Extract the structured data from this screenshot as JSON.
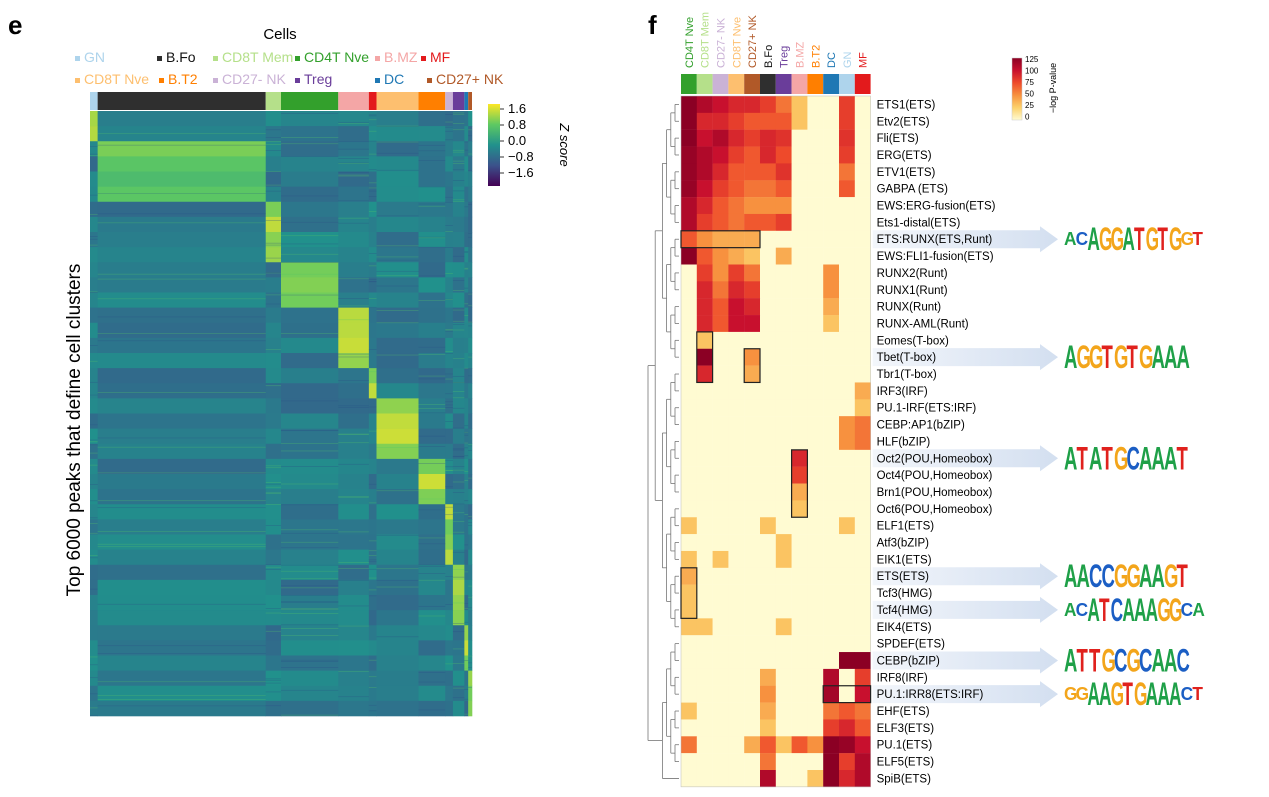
{
  "figure": {
    "panel_e": {
      "label": "e",
      "legend_title": "Cells",
      "legend_items": [
        {
          "name": "GN",
          "color": "#aed4ec"
        },
        {
          "name": "B.Fo",
          "color": "#2f2f2f"
        },
        {
          "name": "CD8T Mem",
          "color": "#b5e08a"
        },
        {
          "name": "CD4T Nve",
          "color": "#33a02c"
        },
        {
          "name": "B.MZ",
          "color": "#f4a6a6"
        },
        {
          "name": "MF",
          "color": "#e31a1c"
        },
        {
          "name": "CD8T Nve",
          "color": "#fdbf6f"
        },
        {
          "name": "B.T2",
          "color": "#ff7f00"
        },
        {
          "name": "CD27- NK",
          "color": "#cab2d6"
        },
        {
          "name": "Treg",
          "color": "#6a3d9a"
        },
        {
          "name": "DC",
          "color": "#1f78b4"
        },
        {
          "name": "CD27+ NK",
          "color": "#b15928"
        }
      ],
      "y_label": "Top 6000 peaks that define cell clusters",
      "colorbar_title": "Z score",
      "colorbar_ticks": [
        "1.6",
        "0.8",
        "0.0",
        "−0.8",
        "−1.6"
      ],
      "colorbar_colors": [
        "#fde725",
        "#5ec962",
        "#21918c",
        "#3b528b",
        "#440154"
      ]
    },
    "panel_f": {
      "label": "f",
      "colorbar_title": "−log P-value",
      "colorbar_ticks": [
        "125",
        "100",
        "75",
        "50",
        "25",
        "0"
      ],
      "colorbar_colors": [
        "#8b0024",
        "#c8102e",
        "#ee4a2b",
        "#f7913f",
        "#fcd16b",
        "#fffbd2"
      ]
    }
  },
  "chart_data": [
    {
      "type": "heatmap",
      "title": "",
      "xlabel": "Cells",
      "ylabel": "Top 6000 peaks that define cell clusters",
      "colorbar_label": "Z score",
      "colorbar_range": [
        -1.6,
        1.6
      ],
      "rows": 6000,
      "column_groups": [
        {
          "name": "GN",
          "fraction": 0.02
        },
        {
          "name": "B.Fo",
          "fraction": 0.44
        },
        {
          "name": "CD8T Mem",
          "fraction": 0.04
        },
        {
          "name": "CD4T Nve",
          "fraction": 0.15
        },
        {
          "name": "B.MZ",
          "fraction": 0.08
        },
        {
          "name": "MF",
          "fraction": 0.02
        },
        {
          "name": "CD8T Nve",
          "fraction": 0.11
        },
        {
          "name": "B.T2",
          "fraction": 0.07
        },
        {
          "name": "CD27- NK",
          "fraction": 0.02
        },
        {
          "name": "Treg",
          "fraction": 0.03
        },
        {
          "name": "DC",
          "fraction": 0.01
        },
        {
          "name": "CD27+ NK",
          "fraction": 0.01
        }
      ]
    },
    {
      "type": "heatmap",
      "title": "",
      "xlabel": "",
      "ylabel": "",
      "colorbar_label": "−log P-value",
      "colorbar_range": [
        0,
        125
      ],
      "columns": [
        {
          "name": "CD4T Nve",
          "color": "#33a02c"
        },
        {
          "name": "CD8T Mem",
          "color": "#b5e08a"
        },
        {
          "name": "CD27- NK",
          "color": "#cab2d6"
        },
        {
          "name": "CD8T Nve",
          "color": "#fdbf6f"
        },
        {
          "name": "CD27+ NK",
          "color": "#b15928"
        },
        {
          "name": "B.Fo",
          "color": "#2f2f2f"
        },
        {
          "name": "Treg",
          "color": "#6a3d9a"
        },
        {
          "name": "B.MZ",
          "color": "#f4a6a6"
        },
        {
          "name": "B.T2",
          "color": "#ff7f00"
        },
        {
          "name": "DC",
          "color": "#1f78b4"
        },
        {
          "name": "GN",
          "color": "#aed4ec"
        },
        {
          "name": "MF",
          "color": "#e31a1c"
        }
      ],
      "rows": [
        "ETS1(ETS)",
        "Etv2(ETS)",
        "Fli(ETS)",
        "ERG(ETS)",
        "ETV1(ETS)",
        "GABPA (ETS)",
        "EWS:ERG-fusion(ETS)",
        "Ets1-distal(ETS)",
        "ETS:RUNX(ETS,Runt)",
        "EWS:FLI1-fusion(ETS)",
        "RUNX2(Runt)",
        "RUNX1(Runt)",
        "RUNX(Runt)",
        "RUNX-AML(Runt)",
        "Eomes(T-box)",
        "Tbet(T-box)",
        "Tbr1(T-box)",
        "IRF3(IRF)",
        "PU.1-IRF(ETS:IRF)",
        "CEBP:AP1(bZIP)",
        "HLF(bZIP)",
        "Oct2(POU,Homeobox)",
        "Oct4(POU,Homeobox)",
        "Brn1(POU,Homeobox)",
        "Oct6(POU,Homeobox)",
        "ELF1(ETS)",
        "Atf3(bZIP)",
        "EIK1(ETS)",
        "ETS(ETS)",
        "Tcf3(HMG)",
        "Tcf4(HMG)",
        "EIK4(ETS)",
        "SPDEF(ETS)",
        "CEBP(bZIP)",
        "IRF8(IRF)",
        "PU.1:IRR8(ETS:IRF)",
        "EHF(ETS)",
        "ELF3(ETS)",
        "PU.1(ETS)",
        "ELF5(ETS)",
        "SpiB(ETS)"
      ],
      "values": [
        [
          125,
          110,
          100,
          90,
          90,
          80,
          60,
          30,
          0,
          0,
          80,
          0
        ],
        [
          125,
          90,
          90,
          80,
          70,
          70,
          70,
          30,
          0,
          0,
          80,
          0
        ],
        [
          125,
          100,
          110,
          90,
          80,
          90,
          85,
          0,
          0,
          0,
          85,
          0
        ],
        [
          120,
          110,
          100,
          80,
          70,
          90,
          75,
          0,
          0,
          0,
          80,
          0
        ],
        [
          120,
          110,
          90,
          70,
          70,
          70,
          85,
          0,
          0,
          0,
          60,
          0
        ],
        [
          120,
          100,
          80,
          70,
          60,
          60,
          70,
          0,
          0,
          0,
          70,
          0
        ],
        [
          110,
          90,
          70,
          60,
          50,
          50,
          50,
          0,
          0,
          0,
          0,
          0
        ],
        [
          110,
          80,
          70,
          60,
          70,
          70,
          80,
          0,
          0,
          0,
          0,
          0
        ],
        [
          70,
          50,
          40,
          40,
          40,
          0,
          0,
          0,
          0,
          0,
          0,
          0
        ],
        [
          125,
          70,
          50,
          40,
          30,
          0,
          40,
          0,
          0,
          0,
          0,
          0
        ],
        [
          0,
          80,
          50,
          80,
          60,
          0,
          0,
          0,
          0,
          50,
          0,
          0
        ],
        [
          0,
          90,
          60,
          90,
          80,
          0,
          0,
          0,
          0,
          50,
          0,
          0
        ],
        [
          0,
          90,
          70,
          100,
          90,
          0,
          0,
          0,
          0,
          40,
          0,
          0
        ],
        [
          0,
          90,
          70,
          100,
          100,
          0,
          0,
          0,
          0,
          30,
          0,
          0
        ],
        [
          0,
          30,
          0,
          0,
          0,
          0,
          0,
          0,
          0,
          0,
          0,
          0
        ],
        [
          0,
          125,
          0,
          0,
          50,
          0,
          0,
          0,
          0,
          0,
          0,
          0
        ],
        [
          0,
          90,
          0,
          0,
          40,
          0,
          0,
          0,
          0,
          0,
          0,
          0
        ],
        [
          0,
          0,
          0,
          0,
          0,
          0,
          0,
          0,
          0,
          0,
          0,
          40
        ],
        [
          0,
          0,
          0,
          0,
          0,
          0,
          0,
          0,
          0,
          0,
          0,
          30
        ],
        [
          0,
          0,
          0,
          0,
          0,
          0,
          0,
          0,
          0,
          0,
          50,
          60
        ],
        [
          0,
          0,
          0,
          0,
          0,
          0,
          0,
          0,
          0,
          0,
          50,
          60
        ],
        [
          0,
          0,
          0,
          0,
          0,
          0,
          0,
          90,
          0,
          0,
          0,
          0
        ],
        [
          0,
          0,
          0,
          0,
          0,
          0,
          0,
          80,
          0,
          0,
          0,
          0
        ],
        [
          0,
          0,
          0,
          0,
          0,
          0,
          0,
          40,
          0,
          0,
          0,
          0
        ],
        [
          0,
          0,
          0,
          0,
          0,
          0,
          0,
          30,
          0,
          0,
          0,
          0
        ],
        [
          30,
          0,
          0,
          0,
          0,
          30,
          0,
          0,
          0,
          0,
          30,
          0
        ],
        [
          0,
          0,
          0,
          0,
          0,
          0,
          30,
          0,
          0,
          0,
          0,
          0
        ],
        [
          30,
          0,
          30,
          0,
          0,
          0,
          30,
          0,
          0,
          0,
          0,
          0
        ],
        [
          40,
          0,
          0,
          0,
          0,
          0,
          0,
          0,
          0,
          0,
          0,
          0
        ],
        [
          30,
          0,
          0,
          0,
          0,
          0,
          0,
          0,
          0,
          0,
          0,
          0
        ],
        [
          30,
          0,
          0,
          0,
          0,
          0,
          0,
          0,
          0,
          0,
          0,
          0
        ],
        [
          30,
          30,
          0,
          0,
          0,
          0,
          30,
          0,
          0,
          0,
          0,
          0
        ],
        [
          0,
          0,
          0,
          0,
          0,
          0,
          0,
          0,
          0,
          0,
          0,
          0
        ],
        [
          0,
          0,
          0,
          0,
          0,
          0,
          0,
          0,
          0,
          0,
          125,
          125
        ],
        [
          0,
          0,
          0,
          0,
          0,
          40,
          0,
          0,
          0,
          110,
          0,
          80
        ],
        [
          0,
          0,
          0,
          0,
          0,
          50,
          0,
          0,
          0,
          115,
          0,
          100
        ],
        [
          30,
          0,
          0,
          0,
          0,
          40,
          0,
          0,
          0,
          60,
          70,
          60
        ],
        [
          0,
          0,
          0,
          0,
          0,
          30,
          0,
          0,
          0,
          80,
          90,
          70
        ],
        [
          60,
          0,
          0,
          0,
          40,
          70,
          30,
          70,
          50,
          125,
          120,
          100
        ],
        [
          0,
          0,
          0,
          0,
          0,
          60,
          0,
          0,
          0,
          125,
          80,
          110
        ],
        [
          0,
          0,
          0,
          0,
          0,
          110,
          0,
          0,
          30,
          125,
          90,
          110
        ]
      ],
      "boxed_regions": [
        {
          "rows": [
            "ETS:RUNX(ETS,Runt)"
          ],
          "columns": [
            "CD4T Nve",
            "CD8T Mem",
            "CD27- NK",
            "CD8T Nve",
            "CD27+ NK"
          ]
        },
        {
          "rows": [
            "Eomes(T-box)",
            "Tbet(T-box)",
            "Tbr1(T-box)"
          ],
          "columns": [
            "CD8T Mem"
          ]
        },
        {
          "rows": [
            "Tbet(T-box)",
            "Tbr1(T-box)"
          ],
          "columns": [
            "CD27+ NK"
          ]
        },
        {
          "rows": [
            "Oct2(POU,Homeobox)",
            "Oct4(POU,Homeobox)",
            "Brn1(POU,Homeobox)",
            "Oct6(POU,Homeobox)"
          ],
          "columns": [
            "B.MZ"
          ]
        },
        {
          "rows": [
            "ETS(ETS)",
            "Tcf3(HMG)",
            "Tcf4(HMG)"
          ],
          "columns": [
            "CD4T Nve"
          ]
        },
        {
          "rows": [
            "PU.1:IRR8(ETS:IRF)"
          ],
          "columns": [
            "DC",
            "GN",
            "MF"
          ]
        }
      ],
      "highlighted_motifs": [
        {
          "row": "ETS:RUNX(ETS,Runt)",
          "logo": "ACAGGATGTGGT"
        },
        {
          "row": "Tbet(T-box)",
          "logo": "AGGTGTGAAA"
        },
        {
          "row": "Oct2(POU,Homeobox)",
          "logo": "ATATGCAAAT"
        },
        {
          "row": "ETS(ETS)",
          "logo": "AACCGGAAGT"
        },
        {
          "row": "Tcf4(HMG)",
          "logo": "ACATCAAAGGCA"
        },
        {
          "row": "CEBP(bZIP)",
          "logo": "ATTGCGCAAC"
        },
        {
          "row": "PU.1:IRR8(ETS:IRF)",
          "logo": "GGAAGTGAAACT"
        }
      ]
    }
  ]
}
